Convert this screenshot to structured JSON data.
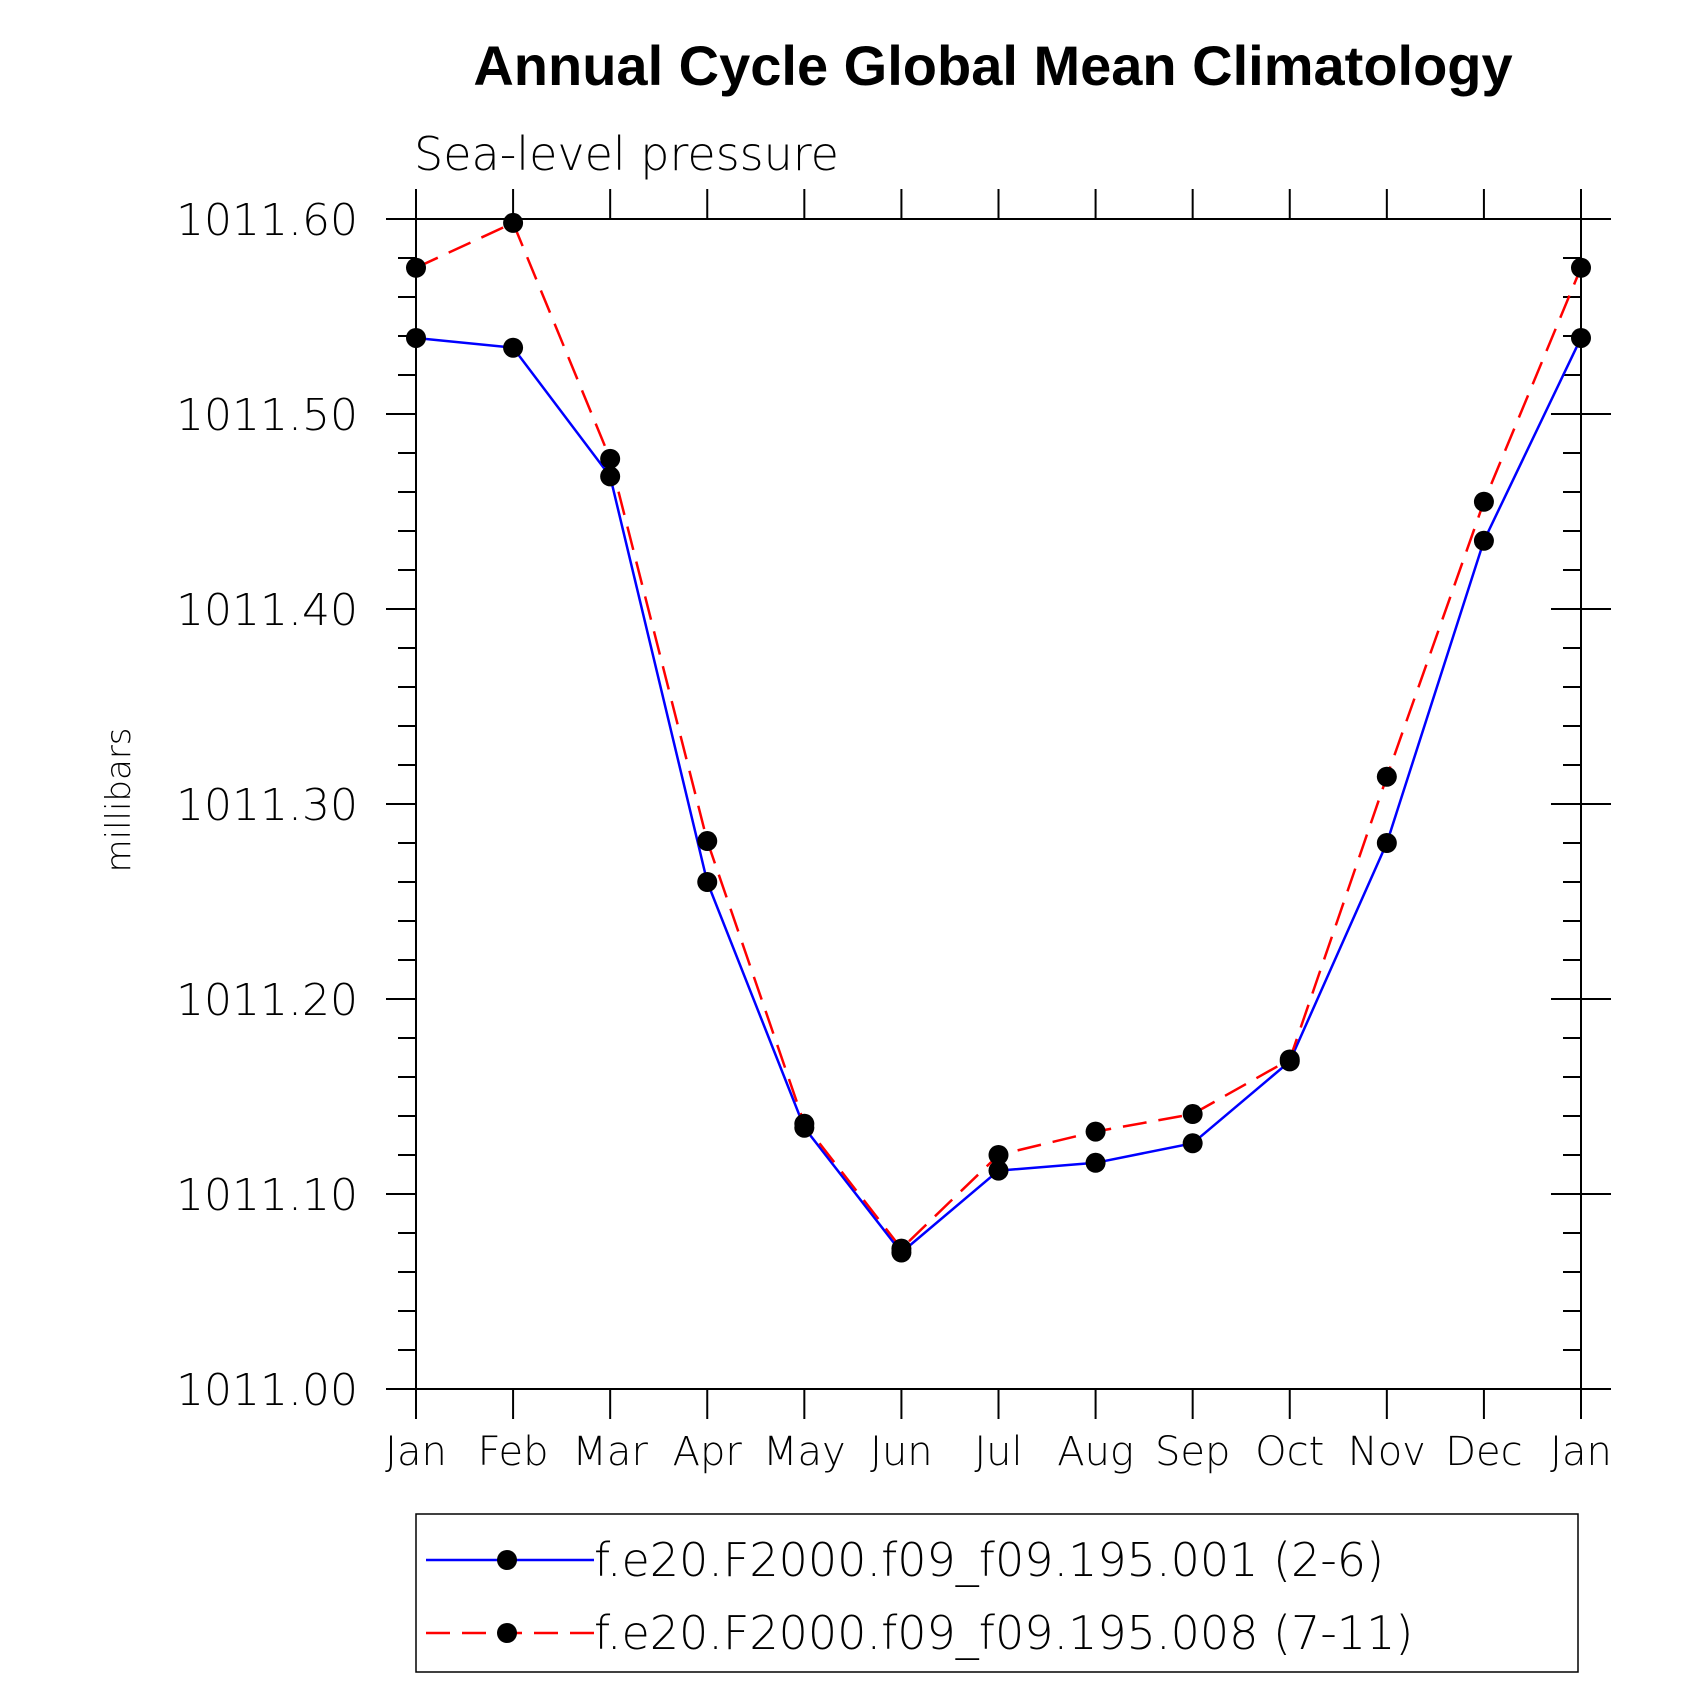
{
  "chart_data": {
    "type": "line",
    "title": "Annual Cycle Global Mean Climatology",
    "subtitle": "Sea-level pressure",
    "xlabel": "",
    "ylabel": "millibars",
    "categories": [
      "Jan",
      "Feb",
      "Mar",
      "Apr",
      "May",
      "Jun",
      "Jul",
      "Aug",
      "Sep",
      "Oct",
      "Nov",
      "Dec",
      "Jan"
    ],
    "ylim": [
      1011.0,
      1011.6
    ],
    "yticks": [
      "1011.00",
      "1011.10",
      "1011.20",
      "1011.30",
      "1011.40",
      "1011.50",
      "1011.60"
    ],
    "legend_position": "bottom",
    "series": [
      {
        "name": "f.e20.F2000.f09_f09.195.001 (2-6)",
        "color": "#0000ff",
        "dash": "solid",
        "values": [
          1011.539,
          1011.534,
          1011.468,
          1011.26,
          1011.134,
          1011.07,
          1011.112,
          1011.116,
          1011.126,
          1011.168,
          1011.28,
          1011.435,
          1011.539
        ]
      },
      {
        "name": "f.e20.F2000.f09_f09.195.008 (7-11)",
        "color": "#ff0000",
        "dash": "dashed",
        "values": [
          1011.575,
          1011.598,
          1011.477,
          1011.281,
          1011.136,
          1011.072,
          1011.12,
          1011.132,
          1011.141,
          1011.169,
          1011.314,
          1011.455,
          1011.575
        ]
      }
    ]
  }
}
